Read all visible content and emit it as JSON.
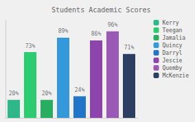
{
  "chart_data": {
    "type": "bar",
    "title": "Students Academic Scores",
    "categories": [
      "Kerry",
      "Teegan",
      "Jamalia",
      "Quincy",
      "Darryl",
      "Jescie",
      "Quemby",
      "McKenzie"
    ],
    "values": [
      20,
      73,
      20,
      89,
      24,
      86,
      96,
      71
    ],
    "value_labels": [
      "20%",
      "73%",
      "20%",
      "89%",
      "24%",
      "86%",
      "96%",
      "71%"
    ],
    "colors": [
      "#2eb88a",
      "#2ecc71",
      "#27ae60",
      "#3498db",
      "#2176c8",
      "#8e44ad",
      "#9b59b6",
      "#2c3e62"
    ],
    "ylim": [
      0,
      108
    ],
    "data_labels": true,
    "tick_labels": false,
    "grid": false,
    "legend": "right"
  }
}
